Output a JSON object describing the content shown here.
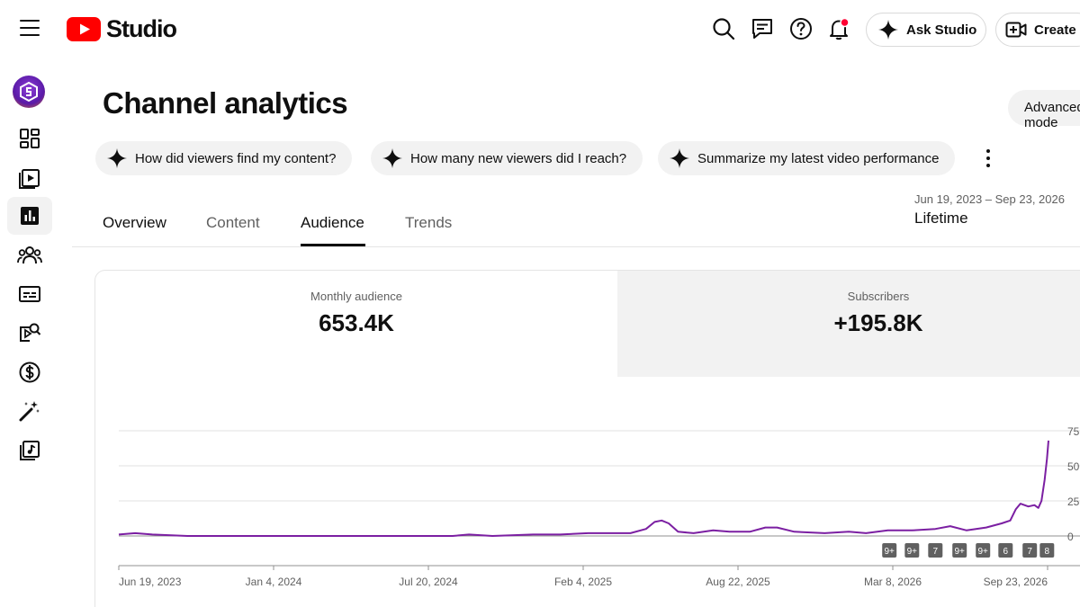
{
  "header": {
    "logo_text": "Studio",
    "ask_studio_label": "Ask Studio",
    "create_label": "Create",
    "colors": {
      "brand_red": "#ff0000",
      "notification_dot": "#ff0033"
    }
  },
  "sidebar": {
    "items": [
      {
        "name": "dashboard",
        "icon": "dashboard-icon"
      },
      {
        "name": "content",
        "icon": "content-icon"
      },
      {
        "name": "analytics",
        "icon": "analytics-icon",
        "active": true
      },
      {
        "name": "community",
        "icon": "community-icon"
      },
      {
        "name": "subtitles",
        "icon": "subtitles-icon"
      },
      {
        "name": "copyright",
        "icon": "copyright-icon"
      },
      {
        "name": "earn",
        "icon": "dollar-icon"
      },
      {
        "name": "customization",
        "icon": "magic-wand-icon"
      },
      {
        "name": "audio-library",
        "icon": "audio-library-icon"
      }
    ]
  },
  "page": {
    "title": "Channel analytics",
    "advanced_mode_label": "Advanced mode",
    "chips": [
      "How did viewers find my content?",
      "How many new viewers did I reach?",
      "Summarize my latest video performance"
    ],
    "date_range": "Jun 19, 2023 – Sep 23, 2026",
    "date_period": "Lifetime",
    "tabs": [
      "Overview",
      "Content",
      "Audience",
      "Trends"
    ],
    "active_tab": "Audience"
  },
  "metrics": [
    {
      "label": "Monthly audience",
      "value": "653.4K",
      "selected": false
    },
    {
      "label": "Subscribers",
      "value": "+195.8K",
      "selected": true
    }
  ],
  "chart_data": {
    "type": "line",
    "x_dates": [
      "Jun 19, 2023",
      "Jan 4, 2024",
      "Jul 20, 2024",
      "Feb 4, 2025",
      "Aug 22, 2025",
      "Mar 8, 2026",
      "Sep 23, 2026"
    ],
    "x_start": "2023-06-19",
    "x_end": "2026-09-23",
    "y_ticks": [
      "0",
      "25",
      "50",
      "75"
    ],
    "ylim": [
      0,
      75
    ],
    "grid": true,
    "line_color": "#7b1fa2",
    "series": [
      {
        "points": [
          [
            "2023-06-19",
            1
          ],
          [
            "2023-07-10",
            2
          ],
          [
            "2023-08-01",
            1
          ],
          [
            "2023-09-15",
            0
          ],
          [
            "2023-12-01",
            0
          ],
          [
            "2024-03-01",
            0
          ],
          [
            "2024-06-01",
            0
          ],
          [
            "2024-08-20",
            0
          ],
          [
            "2024-09-10",
            1
          ],
          [
            "2024-10-10",
            0
          ],
          [
            "2024-12-01",
            1
          ],
          [
            "2025-01-05",
            1
          ],
          [
            "2025-02-10",
            2
          ],
          [
            "2025-03-10",
            2
          ],
          [
            "2025-04-05",
            2
          ],
          [
            "2025-04-25",
            5
          ],
          [
            "2025-05-06",
            10
          ],
          [
            "2025-05-15",
            11
          ],
          [
            "2025-05-24",
            9
          ],
          [
            "2025-06-05",
            3
          ],
          [
            "2025-06-25",
            2
          ],
          [
            "2025-07-20",
            4
          ],
          [
            "2025-08-10",
            3
          ],
          [
            "2025-09-05",
            3
          ],
          [
            "2025-09-25",
            6
          ],
          [
            "2025-10-10",
            6
          ],
          [
            "2025-11-01",
            3
          ],
          [
            "2025-12-10",
            2
          ],
          [
            "2026-01-10",
            3
          ],
          [
            "2026-02-01",
            2
          ],
          [
            "2026-03-01",
            4
          ],
          [
            "2026-04-01",
            4
          ],
          [
            "2026-05-01",
            5
          ],
          [
            "2026-05-20",
            7
          ],
          [
            "2026-06-10",
            4
          ],
          [
            "2026-07-05",
            6
          ],
          [
            "2026-07-25",
            9
          ],
          [
            "2026-08-05",
            11
          ],
          [
            "2026-08-12",
            19
          ],
          [
            "2026-08-18",
            23
          ],
          [
            "2026-08-28",
            21
          ],
          [
            "2026-09-05",
            22
          ],
          [
            "2026-09-10",
            20
          ],
          [
            "2026-09-14",
            25
          ],
          [
            "2026-09-18",
            40
          ],
          [
            "2026-09-21",
            55
          ],
          [
            "2026-09-23",
            68
          ]
        ]
      }
    ],
    "event_markers": [
      {
        "label": "9+",
        "date": "2026-03-03"
      },
      {
        "label": "9+",
        "date": "2026-04-01"
      },
      {
        "label": "7",
        "date": "2026-05-01"
      },
      {
        "label": "9+",
        "date": "2026-06-01"
      },
      {
        "label": "9+",
        "date": "2026-07-01"
      },
      {
        "label": "6",
        "date": "2026-07-30"
      },
      {
        "label": "7",
        "date": "2026-08-30"
      },
      {
        "label": "8",
        "date": "2026-09-21"
      }
    ]
  }
}
